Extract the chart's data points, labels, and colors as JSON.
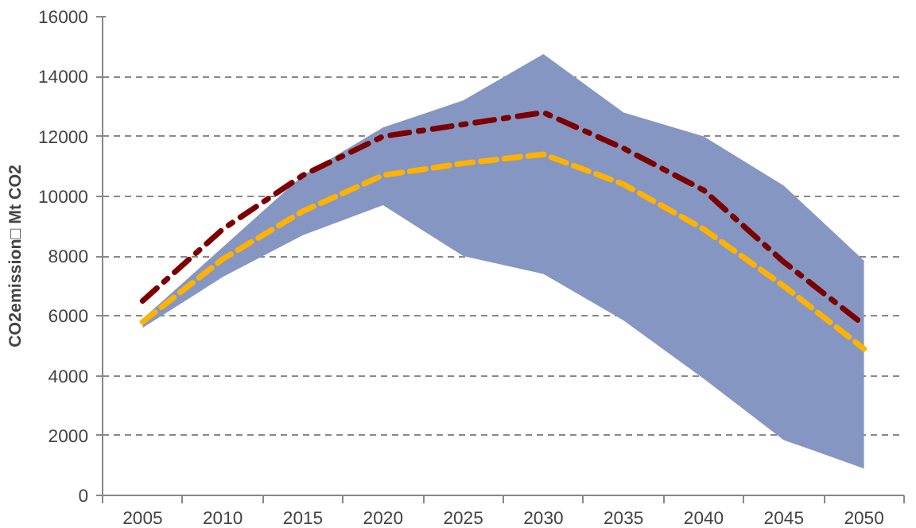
{
  "chart_data": {
    "type": "line",
    "ylabel": "CO2emission□ Mt CO2",
    "categories": [
      "2005",
      "2010",
      "2015",
      "2020",
      "2025",
      "2030",
      "2035",
      "2040",
      "2045",
      "2050"
    ],
    "series": [
      {
        "color": "#7b0000",
        "line_style": "dashdot",
        "values": [
          6500,
          8900,
          10700,
          12000,
          12400,
          12800,
          11600,
          10200,
          7800,
          5700
        ]
      },
      {
        "color": "#ffb300",
        "line_style": "dashed",
        "values": [
          5800,
          7900,
          9500,
          10700,
          11100,
          11400,
          10400,
          8900,
          7000,
          4900
        ],
        "lower": [
          5600,
          7300,
          8700,
          9700,
          8000,
          7400,
          5850,
          3900,
          1850,
          900
        ],
        "upper": [
          5900,
          8300,
          10700,
          12300,
          13200,
          14750,
          12800,
          12000,
          10350,
          7850
        ]
      }
    ],
    "ylim": [
      0,
      16000
    ],
    "yticks": [
      0,
      2000,
      4000,
      6000,
      8000,
      10000,
      12000,
      14000,
      16000
    ],
    "grid": "y"
  }
}
